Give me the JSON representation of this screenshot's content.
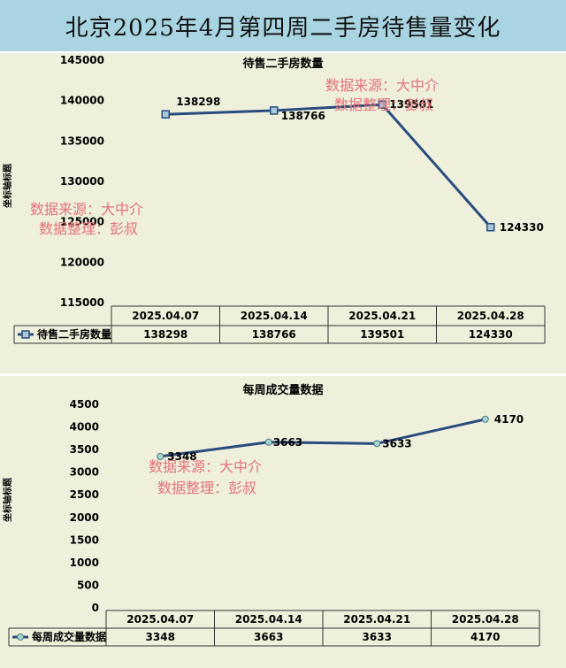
{
  "page_title": "北京2025年4月第四周二手房待售量变化",
  "watermark": {
    "line1": "数据来源：大中介",
    "line2": "数据整理：彭叔"
  },
  "colors": {
    "header_bg": "#a9d5e2",
    "panel_bg": "#eef0dc",
    "line": "#2a4c7d",
    "watermark": "#e5717a"
  },
  "chart_data": [
    {
      "type": "line",
      "title": "待售二手房数量",
      "ylabel": "坐标轴标题",
      "categories": [
        "2025.04.07",
        "2025.04.14",
        "2025.04.21",
        "2025.04.28"
      ],
      "series": [
        {
          "name": "待售二手房数量",
          "values": [
            138298,
            138766,
            139501,
            124330
          ]
        }
      ],
      "ylim": [
        115000,
        145000
      ],
      "yticks": [
        115000,
        120000,
        125000,
        130000,
        135000,
        140000,
        145000
      ],
      "data_labels": [
        "138298",
        "138766",
        "139501",
        "124330"
      ],
      "grid": false,
      "legend": "data-table"
    },
    {
      "type": "line",
      "title": "每周成交量数据",
      "ylabel": "坐标轴标题",
      "categories": [
        "2025.04.07",
        "2025.04.14",
        "2025.04.21",
        "2025.04.28"
      ],
      "series": [
        {
          "name": "每周成交量数据",
          "values": [
            3348,
            3663,
            3633,
            4170
          ]
        }
      ],
      "ylim": [
        0,
        4500
      ],
      "yticks": [
        0,
        500,
        1000,
        1500,
        2000,
        2500,
        3000,
        3500,
        4000,
        4500
      ],
      "data_labels": [
        "3348",
        "3663",
        "3633",
        "4170"
      ],
      "grid": false,
      "legend": "data-table"
    }
  ]
}
